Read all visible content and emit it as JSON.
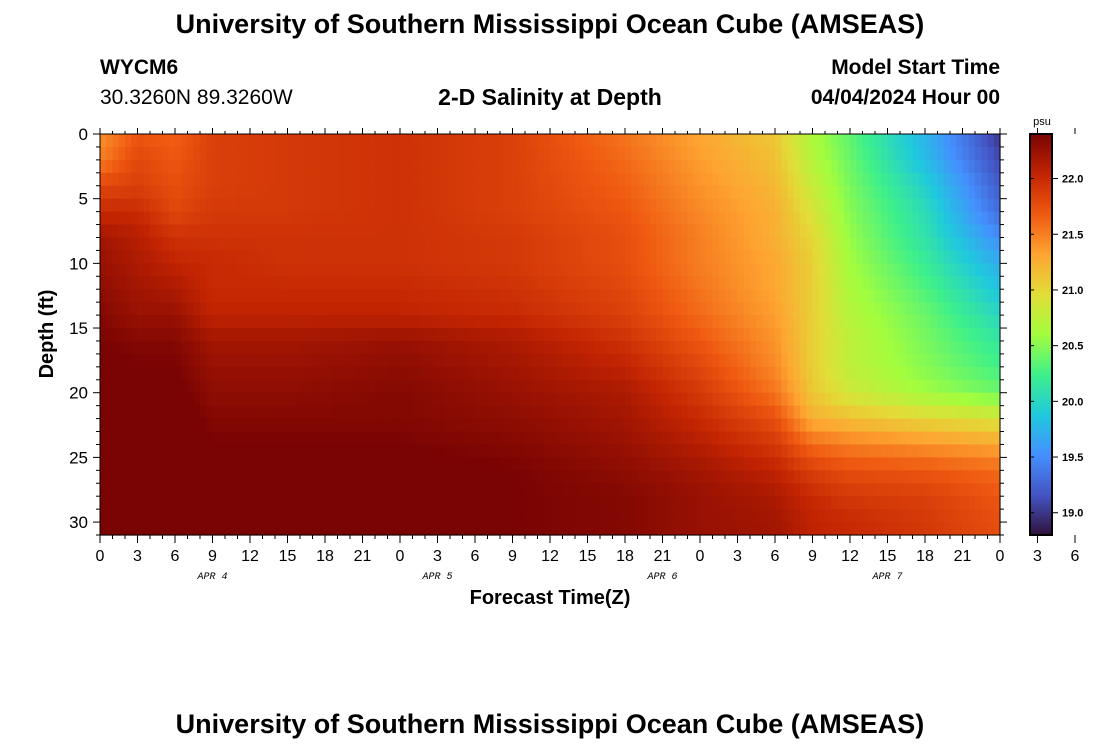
{
  "header": {
    "title_top": "University of Southern Mississippi Ocean Cube (AMSEAS)",
    "station_id": "WYCM6",
    "coords": "30.3260N  89.3260W",
    "chart_title": "2-D Salinity at Depth",
    "model_start_label": "Model Start Time",
    "model_start_value": "04/04/2024 Hour 00",
    "title_bottom": "University of Southern Mississippi Ocean Cube (AMSEAS)"
  },
  "colors": {
    "colormap": [
      "#30123b",
      "#4454c4",
      "#4490fe",
      "#1fc9dd",
      "#3ef08a",
      "#a3fd3d",
      "#e1dd37",
      "#fea431",
      "#ef5911",
      "#c22402",
      "#7a0403"
    ]
  },
  "chart_data": {
    "type": "heatmap",
    "title": "2-D Salinity at Depth",
    "xlabel": "Forecast Time(Z)",
    "ylabel": "Depth (ft)",
    "x_unit_hours": 3,
    "x_range_hours": [
      0,
      72
    ],
    "ylim": [
      0,
      31
    ],
    "y_ticks": [
      0,
      5,
      10,
      15,
      20,
      25,
      30
    ],
    "x_tick_labels": [
      "0",
      "3",
      "6",
      "9",
      "12",
      "15",
      "18",
      "21",
      "0",
      "3",
      "6",
      "9",
      "12",
      "15",
      "18",
      "21",
      "0",
      "3",
      "6",
      "9",
      "12",
      "15",
      "18",
      "21",
      "0",
      "3",
      "6",
      "9",
      "12",
      "15",
      "18",
      "21",
      "0"
    ],
    "date_labels": [
      {
        "text": "APR 4",
        "hour": 9
      },
      {
        "text": "APR 5",
        "hour": 27
      },
      {
        "text": "APR 6",
        "hour": 45
      },
      {
        "text": "APR 7",
        "hour": 63
      }
    ],
    "colorbar": {
      "unit": "psu",
      "range": [
        18.8,
        22.4
      ],
      "ticks": [
        19.0,
        19.5,
        20.0,
        20.5,
        21.0,
        21.5,
        22.0
      ],
      "tick_labels": [
        "19.0",
        "19.5",
        "20.0",
        "20.5",
        "21.0",
        "21.5",
        "22.0"
      ]
    },
    "profile_depths_ft": [
      0,
      2,
      4,
      6,
      8,
      10,
      12,
      14,
      16,
      18,
      20,
      22,
      24,
      26,
      28,
      30,
      31
    ],
    "profiles": [
      {
        "hour": 0,
        "salinity": [
          21.4,
          21.5,
          21.8,
          22.0,
          22.2,
          22.25,
          22.3,
          22.35,
          22.4,
          22.45,
          22.5,
          22.55,
          22.6,
          22.65,
          22.7,
          22.7,
          22.7
        ]
      },
      {
        "hour": 3,
        "salinity": [
          21.7,
          21.8,
          21.85,
          22.0,
          22.1,
          22.15,
          22.2,
          22.25,
          22.35,
          22.4,
          22.45,
          22.5,
          22.55,
          22.6,
          22.6,
          22.6,
          22.6
        ]
      },
      {
        "hour": 6,
        "salinity": [
          21.65,
          21.7,
          21.75,
          21.8,
          21.95,
          22.05,
          22.15,
          22.25,
          22.35,
          22.4,
          22.45,
          22.5,
          22.55,
          22.55,
          22.55,
          22.55,
          22.55
        ]
      },
      {
        "hour": 9,
        "salinity": [
          21.85,
          21.85,
          21.85,
          21.9,
          21.95,
          22.0,
          22.0,
          22.05,
          22.2,
          22.25,
          22.3,
          22.35,
          22.4,
          22.45,
          22.5,
          22.5,
          22.5
        ]
      },
      {
        "hour": 15,
        "salinity": [
          21.9,
          21.9,
          21.9,
          21.9,
          21.95,
          21.95,
          22.0,
          22.05,
          22.2,
          22.25,
          22.3,
          22.35,
          22.4,
          22.45,
          22.45,
          22.45,
          22.45
        ]
      },
      {
        "hour": 24,
        "salinity": [
          21.95,
          21.95,
          21.95,
          21.95,
          21.95,
          21.95,
          22.0,
          22.05,
          22.25,
          22.3,
          22.35,
          22.35,
          22.4,
          22.45,
          22.45,
          22.45,
          22.45
        ]
      },
      {
        "hour": 33,
        "salinity": [
          21.85,
          21.85,
          21.85,
          21.85,
          21.9,
          21.9,
          21.95,
          22.0,
          22.15,
          22.2,
          22.25,
          22.3,
          22.35,
          22.4,
          22.4,
          22.4,
          22.4
        ]
      },
      {
        "hour": 42,
        "salinity": [
          21.55,
          21.6,
          21.65,
          21.7,
          21.75,
          21.75,
          21.8,
          21.85,
          21.95,
          22.05,
          22.15,
          22.2,
          22.25,
          22.3,
          22.35,
          22.35,
          22.35
        ]
      },
      {
        "hour": 48,
        "salinity": [
          21.3,
          21.35,
          21.4,
          21.45,
          21.5,
          21.5,
          21.55,
          21.6,
          21.7,
          21.8,
          21.9,
          22.0,
          22.1,
          22.2,
          22.25,
          22.25,
          22.25
        ]
      },
      {
        "hour": 54,
        "salinity": [
          21.1,
          21.15,
          21.2,
          21.25,
          21.25,
          21.3,
          21.3,
          21.35,
          21.4,
          21.45,
          21.55,
          21.75,
          21.9,
          22.05,
          22.15,
          22.2,
          22.2
        ]
      },
      {
        "hour": 57,
        "salinity": [
          20.65,
          20.7,
          20.8,
          20.9,
          21.0,
          21.05,
          21.05,
          21.05,
          21.05,
          21.05,
          21.1,
          21.25,
          21.6,
          21.85,
          22.0,
          22.05,
          22.05
        ]
      },
      {
        "hour": 60,
        "salinity": [
          20.35,
          20.4,
          20.45,
          20.5,
          20.55,
          20.6,
          20.65,
          20.7,
          20.75,
          20.75,
          20.85,
          21.15,
          21.5,
          21.75,
          21.9,
          22.0,
          22.0
        ]
      },
      {
        "hour": 66,
        "salinity": [
          19.75,
          19.8,
          19.95,
          20.05,
          20.1,
          20.2,
          20.3,
          20.4,
          20.45,
          20.5,
          20.6,
          21.0,
          21.4,
          21.7,
          21.85,
          21.9,
          21.9
        ]
      },
      {
        "hour": 72,
        "salinity": [
          19.0,
          19.1,
          19.2,
          19.3,
          19.5,
          19.7,
          19.85,
          20.0,
          20.15,
          20.25,
          20.4,
          20.9,
          21.3,
          21.6,
          21.7,
          21.75,
          21.75
        ]
      }
    ]
  }
}
